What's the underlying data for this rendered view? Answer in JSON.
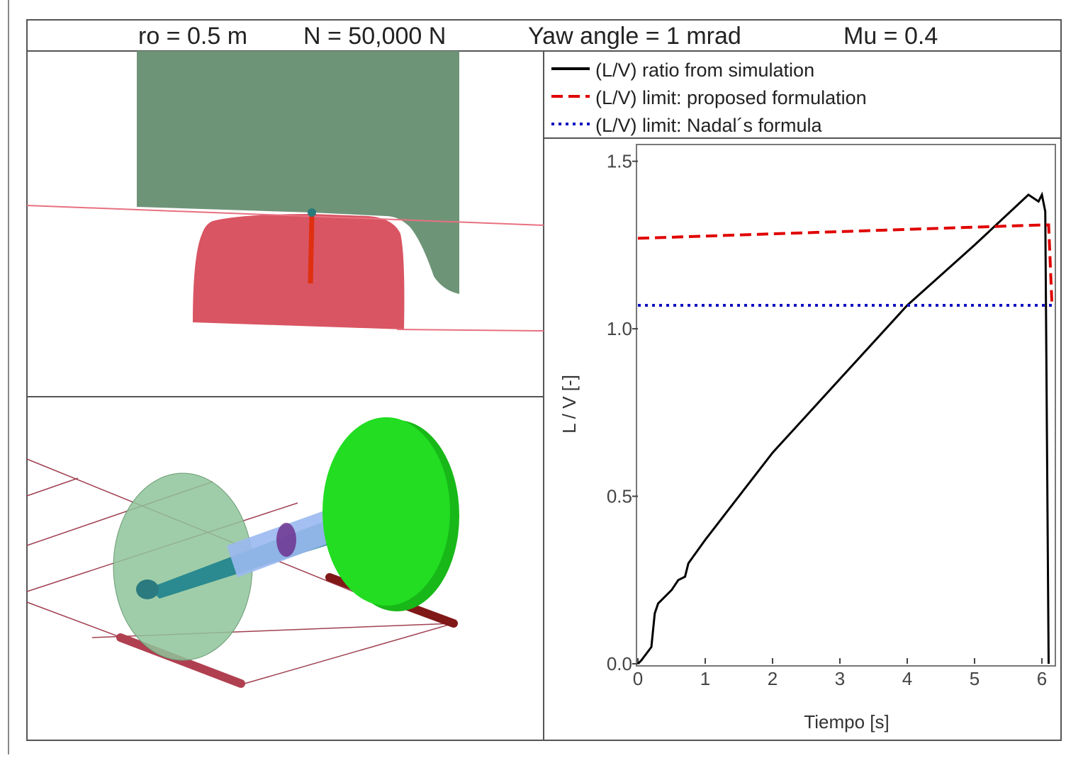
{
  "header": {
    "items": [
      "ro = 0.5 m",
      "N = 50,000 N",
      "Yaw angle = 1 mrad",
      "Mu = 0.4"
    ]
  },
  "chart_data": {
    "type": "line",
    "xlabel": "Tiempo [s]",
    "ylabel": "L / V [-]",
    "xlim": [
      0,
      6.2
    ],
    "ylim": [
      0,
      1.55
    ],
    "xticks": [
      0,
      1,
      2,
      3,
      4,
      5,
      6
    ],
    "yticks": [
      {
        "value": 0,
        "label": "0.0"
      },
      0.5,
      {
        "value": 1,
        "label": "1.0"
      },
      1.5
    ],
    "legend": "top",
    "series": [
      {
        "name": "(L/V) ratio from simulation",
        "color": "#000000",
        "line_style": "solid",
        "x": [
          0,
          0.05,
          0.2,
          0.25,
          0.3,
          0.5,
          0.6,
          0.7,
          0.75,
          1,
          2,
          3,
          4,
          5,
          5.8,
          5.95,
          6.0,
          6.05,
          6.1
        ],
        "values": [
          0,
          0.01,
          0.05,
          0.15,
          0.18,
          0.22,
          0.25,
          0.26,
          0.3,
          0.37,
          0.63,
          0.85,
          1.07,
          1.25,
          1.4,
          1.38,
          1.4,
          1.35,
          0
        ]
      },
      {
        "name": "(L/V) limit: proposed formulation",
        "color": "#e00000",
        "line_style": "dashed",
        "x": [
          0,
          6,
          6.1,
          6.15
        ],
        "values": [
          1.27,
          1.31,
          1.31,
          1.07
        ]
      },
      {
        "name": "(L/V) limit: Nadal´s formula",
        "color": "#1010c0",
        "line_style": "dotted",
        "x": [
          0,
          6.15
        ],
        "values": [
          1.07,
          1.07
        ]
      }
    ]
  }
}
